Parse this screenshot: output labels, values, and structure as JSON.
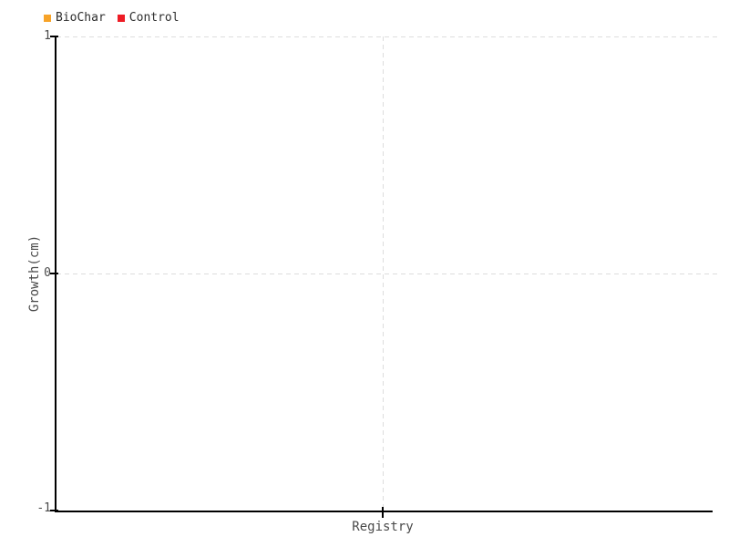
{
  "chart_data": {
    "type": "scatter",
    "title": "",
    "categories": [
      "Registry"
    ],
    "series": [
      {
        "name": "BioChar",
        "color": "#F7A328",
        "values": []
      },
      {
        "name": "Control",
        "color": "#EE1C25",
        "values": []
      }
    ],
    "xlabel": "Registry",
    "ylabel": "Growth(cm)",
    "ylim": [
      -1,
      1
    ],
    "yticks": [
      "1",
      "0",
      "-1"
    ],
    "xticks": [
      "Registry"
    ],
    "grid": "dashed",
    "legend_position": "top-left"
  },
  "legend": {
    "items": [
      {
        "label": "BioChar",
        "color": "#F7A328"
      },
      {
        "label": "Control",
        "color": "#EE1C25"
      }
    ]
  },
  "axes": {
    "y": {
      "title": "Growth(cm)",
      "ticks": [
        "1",
        "0",
        "-1"
      ]
    },
    "x": {
      "ticks": [
        "Registry"
      ]
    }
  },
  "colors": {
    "background": "#ffffff",
    "axis": "#000000",
    "grid": "#dddddd",
    "tick_text": "#4a4a4a",
    "legend_text": "#2f2f2f",
    "biochar": "#F7A328",
    "control": "#EE1C25"
  }
}
